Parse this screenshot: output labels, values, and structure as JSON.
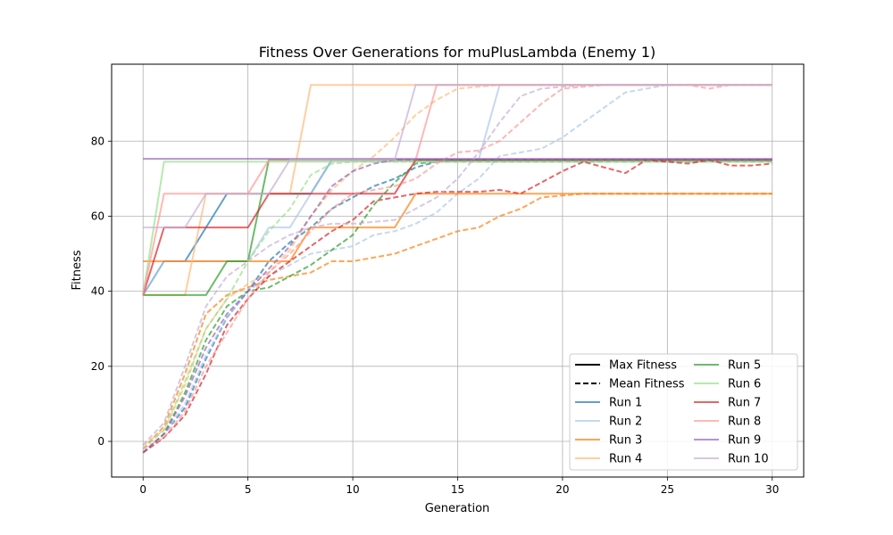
{
  "chart_data": {
    "type": "line",
    "title": "Fitness Over Generations for muPlusLambda (Enemy 1)",
    "xlabel": "Generation",
    "ylabel": "Fitness",
    "xlim": [
      -1.5,
      31.5
    ],
    "ylim": [
      -9.5,
      100.5
    ],
    "xticks": [
      0,
      5,
      10,
      15,
      20,
      25,
      30
    ],
    "yticks": [
      0,
      20,
      40,
      60,
      80
    ],
    "grid": true,
    "legend_position": "lower-right",
    "legend_style": [
      {
        "label": "Max Fitness",
        "dash": "solid"
      },
      {
        "label": "Mean Fitness",
        "dash": "dashed"
      }
    ],
    "series": [
      {
        "name": "Run 1",
        "color": "#1f77b4",
        "alpha": 0.7,
        "max": [
          39,
          48,
          48,
          57,
          66,
          66,
          66,
          66,
          66,
          75,
          75,
          75,
          75,
          75,
          75,
          75,
          75,
          75,
          75,
          75,
          75,
          75,
          75,
          75,
          75,
          75,
          75,
          75,
          75,
          75,
          75
        ],
        "mean": [
          -3,
          2,
          9,
          22,
          33,
          40,
          48,
          53,
          57,
          62,
          65,
          68,
          70,
          73,
          74.5,
          74.8,
          75,
          75,
          75,
          75,
          75,
          75,
          75,
          75,
          75,
          75,
          75,
          75,
          75,
          75,
          75
        ]
      },
      {
        "name": "Run 2",
        "color": "#aec7e8",
        "alpha": 0.7,
        "max": [
          39,
          48,
          48,
          48,
          48,
          48,
          57,
          57,
          66,
          75,
          75,
          75,
          75,
          75,
          75,
          75,
          75,
          95,
          95,
          95,
          95,
          95,
          95,
          95,
          95,
          95,
          95,
          95,
          95,
          95,
          95
        ],
        "mean": [
          -3,
          2,
          10,
          23,
          33,
          40,
          44,
          47,
          50,
          51,
          52,
          55,
          56,
          58,
          61,
          66,
          70,
          76,
          77,
          78,
          81,
          85,
          89,
          93,
          94,
          95,
          95,
          95,
          95,
          95,
          95
        ]
      },
      {
        "name": "Run 3",
        "color": "#ff7f0e",
        "alpha": 0.7,
        "max": [
          48,
          48,
          48,
          48,
          48,
          48,
          48,
          48,
          57,
          57,
          57,
          57,
          57,
          66,
          66,
          66,
          66,
          66,
          66,
          66,
          66,
          66,
          66,
          66,
          66,
          66,
          66,
          66,
          66,
          66,
          66
        ],
        "mean": [
          -2,
          4,
          18,
          34,
          39,
          41,
          43,
          44,
          45,
          48,
          48,
          49,
          50,
          52,
          54,
          56,
          57,
          60,
          62,
          65,
          65.5,
          66,
          66,
          66,
          66,
          66,
          66,
          66,
          66,
          66,
          66
        ]
      },
      {
        "name": "Run 4",
        "color": "#ffbb78",
        "alpha": 0.7,
        "max": [
          39,
          39,
          39,
          66,
          66,
          66,
          66,
          66,
          95,
          95,
          95,
          95,
          95,
          95,
          95,
          95,
          95,
          95,
          95,
          95,
          95,
          95,
          95,
          95,
          95,
          95,
          95,
          95,
          95,
          95,
          95
        ],
        "mean": [
          -1,
          3,
          15,
          30,
          38,
          42,
          45,
          51,
          60,
          67,
          72,
          76,
          81,
          87,
          91,
          94,
          94.5,
          95,
          95,
          95,
          95,
          95,
          95,
          95,
          95,
          95,
          95,
          95,
          95,
          95,
          95
        ]
      },
      {
        "name": "Run 5",
        "color": "#2ca02c",
        "alpha": 0.7,
        "max": [
          39,
          39,
          39,
          39,
          48,
          48,
          75,
          75,
          75,
          75,
          75,
          75,
          75,
          75,
          75,
          75,
          75,
          75,
          75,
          75,
          75,
          75,
          75,
          75,
          75,
          75,
          75,
          75,
          75,
          75,
          75
        ],
        "mean": [
          -3,
          2,
          13,
          27,
          36,
          40,
          41,
          44,
          47,
          51,
          55,
          63,
          69,
          74,
          74.5,
          74.5,
          74.5,
          74.5,
          74.5,
          74.5,
          74.5,
          74.5,
          74.5,
          74.5,
          74.5,
          74.5,
          74.5,
          74.5,
          74.5,
          74.5,
          74.5
        ]
      },
      {
        "name": "Run 6",
        "color": "#98df8a",
        "alpha": 0.7,
        "max": [
          39,
          74.5,
          74.5,
          74.5,
          74.5,
          74.5,
          74.5,
          74.5,
          74.5,
          74.5,
          74.5,
          74.5,
          74.5,
          74.5,
          74.5,
          74.5,
          74.5,
          74.5,
          74.5,
          74.5,
          74.5,
          74.5,
          74.5,
          74.5,
          74.5,
          74.5,
          74.5,
          74.5,
          74.5,
          74.5,
          74.5
        ],
        "mean": [
          -2,
          3,
          16,
          30,
          38,
          48,
          56,
          62,
          71,
          74,
          74.5,
          74.5,
          74.5,
          74.5,
          74.5,
          74.5,
          74.5,
          74.5,
          74.5,
          74.5,
          74.5,
          74.5,
          74.5,
          74.5,
          74.5,
          74.5,
          74.5,
          74.5,
          74.5,
          74.5,
          74.5
        ]
      },
      {
        "name": "Run 7",
        "color": "#d62728",
        "alpha": 0.7,
        "max": [
          39,
          57,
          57,
          57,
          57,
          57,
          66,
          66,
          66,
          66,
          66,
          66,
          66,
          75,
          75,
          75,
          75,
          75,
          75,
          75,
          75,
          75,
          75,
          75,
          75,
          75,
          75,
          75,
          75,
          75,
          75
        ],
        "mean": [
          -3,
          1,
          7,
          18,
          31,
          38,
          44,
          48,
          52,
          56,
          59,
          64,
          65,
          66,
          66.5,
          66.5,
          66.5,
          67,
          66,
          69,
          72,
          74.5,
          73,
          71.5,
          75,
          74.5,
          74,
          75,
          73.5,
          73.5,
          74
        ]
      },
      {
        "name": "Run 8",
        "color": "#ff9896",
        "alpha": 0.7,
        "max": [
          39,
          66,
          66,
          66,
          66,
          66,
          75,
          75,
          75,
          75,
          75,
          75,
          75,
          75,
          95,
          95,
          95,
          95,
          95,
          95,
          95,
          95,
          95,
          95,
          95,
          95,
          95,
          95,
          95,
          95,
          95
        ],
        "mean": [
          -2,
          1,
          8,
          20,
          29,
          38,
          45,
          50,
          56,
          62,
          66,
          67,
          68,
          70,
          74,
          77,
          77.5,
          80,
          85,
          90,
          94,
          94.5,
          95,
          95,
          95,
          95,
          95,
          94,
          95,
          95,
          95
        ]
      },
      {
        "name": "Run 9",
        "color": "#9467bd",
        "alpha": 0.7,
        "max": [
          75.3,
          75.3,
          75.3,
          75.3,
          75.3,
          75.3,
          75.3,
          75.3,
          75.3,
          75.3,
          75.3,
          75.3,
          75.3,
          75.3,
          75.3,
          75.3,
          75.3,
          75.3,
          75.3,
          75.3,
          75.3,
          75.3,
          75.3,
          75.3,
          75.3,
          75.3,
          75.3,
          75.3,
          75.3,
          75.3,
          75.3
        ],
        "mean": [
          -3,
          2,
          12,
          25,
          34,
          40,
          46,
          52,
          60,
          68,
          72,
          74,
          75,
          75,
          75,
          75,
          75,
          75,
          75,
          75,
          75,
          75,
          75,
          75,
          75,
          75,
          75,
          75,
          75,
          75,
          75
        ]
      },
      {
        "name": "Run 10",
        "color": "#c5b0d5",
        "alpha": 0.7,
        "max": [
          57,
          57,
          57,
          66,
          66,
          66,
          66,
          75,
          75,
          75,
          75,
          75,
          75,
          95,
          95,
          95,
          95,
          95,
          95,
          95,
          95,
          95,
          95,
          95,
          95,
          95,
          95,
          95,
          95,
          95,
          95
        ],
        "mean": [
          -1,
          5,
          20,
          36,
          44,
          48,
          52,
          55,
          57,
          58,
          58,
          58.5,
          59,
          62,
          65,
          70,
          77,
          85,
          92,
          94,
          94.5,
          95,
          95,
          95,
          95,
          95,
          95,
          95,
          95,
          95,
          95
        ]
      }
    ]
  }
}
